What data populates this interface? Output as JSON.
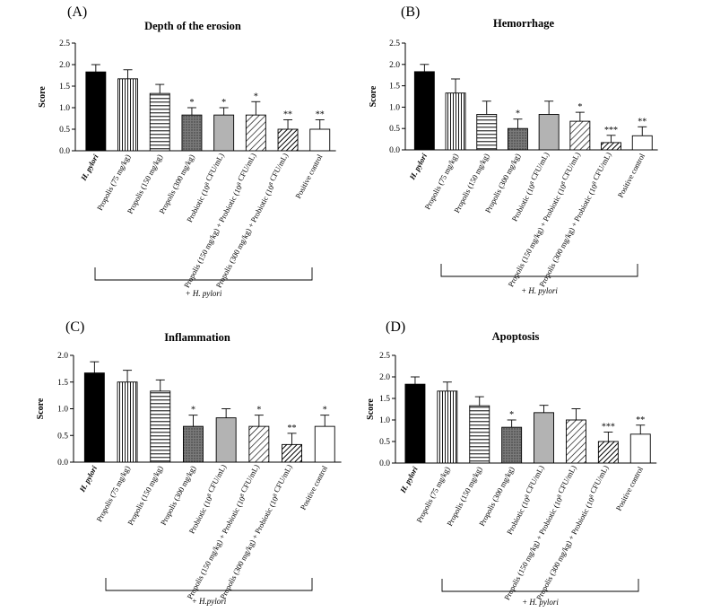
{
  "figure": {
    "panels": [
      {
        "id": "A",
        "label": "(A)",
        "title": "Depth of the erosion"
      },
      {
        "id": "B",
        "label": "(B)",
        "title": "Hemorrhage"
      },
      {
        "id": "C",
        "label": "(C)",
        "title": "Inflammation"
      },
      {
        "id": "D",
        "label": "(D)",
        "title": "Apoptosis"
      }
    ]
  },
  "chart_data": [
    {
      "type": "bar",
      "panel": "(A)",
      "title": "Depth of the erosion",
      "ylabel": "Score",
      "xlabel": "",
      "ylim": [
        0,
        2.5
      ],
      "yticks": [
        "0.0",
        "0.5",
        "1.0",
        "1.5",
        "2.0",
        "2.5"
      ],
      "categories": [
        "H. pylori",
        "Propolis (75 mg/kg)",
        "Propolis (150 mg/kg)",
        "Propolis (300 mg/kg)",
        "Probiotic (10⁸ CFU/mL)",
        "Propolis (150 mg/kg) + Probiotic (10⁸ CFU/mL)",
        "Propolis (300 mg/kg) + Probiotic (10⁸ CFU/mL)",
        "Positive control"
      ],
      "values": [
        1.83,
        1.67,
        1.33,
        0.83,
        0.83,
        0.83,
        0.5,
        0.5
      ],
      "errors": [
        0.17,
        0.21,
        0.21,
        0.17,
        0.17,
        0.31,
        0.22,
        0.22
      ],
      "significance": [
        "",
        "",
        "",
        "*",
        "*",
        "*",
        "**",
        "**"
      ],
      "bracket_label": "+ H. pylori",
      "grid": false
    },
    {
      "type": "bar",
      "panel": "(B)",
      "title": "Hemorrhage",
      "ylabel": "Score",
      "xlabel": "",
      "ylim": [
        0,
        2.5
      ],
      "yticks": [
        "0.0",
        "0.5",
        "1.0",
        "1.5",
        "2.0",
        "2.5"
      ],
      "categories": [
        "H. pylori",
        "Propolis (75 mg/kg)",
        "Propolis (150 mg/kg)",
        "Propolis (300 mg/kg)",
        "Probiotic (10⁸ CFU/mL)",
        "Propolis (150 mg/kg) + Probiotic (10⁸ CFU/mL)",
        "Propolis (300 mg/kg) + Probiotic (10⁸ CFU/mL)",
        "Positive control"
      ],
      "values": [
        1.83,
        1.33,
        0.83,
        0.5,
        0.83,
        0.67,
        0.17,
        0.33
      ],
      "errors": [
        0.17,
        0.33,
        0.31,
        0.22,
        0.31,
        0.21,
        0.17,
        0.21
      ],
      "significance": [
        "",
        "",
        "",
        "*",
        "",
        "*",
        "***",
        "**"
      ],
      "bracket_label": "+ H. pylori",
      "grid": false
    },
    {
      "type": "bar",
      "panel": "(C)",
      "title": "Inflammation",
      "ylabel": "Score",
      "xlabel": "",
      "ylim": [
        0,
        2.0
      ],
      "yticks": [
        "0.0",
        "0.5",
        "1.0",
        "1.5",
        "2.0"
      ],
      "categories": [
        "H. pylori",
        "Propolis (75 mg/kg)",
        "Propolis (150 mg/kg)",
        "Propolis (300 mg/kg)",
        "Probiotic (10⁸ CFU/mL)",
        "Propolis (150 mg/kg) + Probiotic (10⁸ CFU/mL)",
        "Propolis (300 mg/kg) + Probiotic (10⁸ CFU/mL)",
        "Positive control"
      ],
      "values": [
        1.67,
        1.5,
        1.33,
        0.67,
        0.83,
        0.67,
        0.33,
        0.67
      ],
      "errors": [
        0.21,
        0.22,
        0.21,
        0.21,
        0.17,
        0.21,
        0.21,
        0.21
      ],
      "significance": [
        "",
        "",
        "",
        "*",
        "",
        "*",
        "**",
        "*"
      ],
      "bracket_label": "+ H.pylori",
      "grid": false
    },
    {
      "type": "bar",
      "panel": "(D)",
      "title": "Apoptosis",
      "ylabel": "Score",
      "xlabel": "",
      "ylim": [
        0,
        2.5
      ],
      "yticks": [
        "0.0",
        "0.5",
        "1.0",
        "1.5",
        "2.0",
        "2.5"
      ],
      "categories": [
        "H. pylori",
        "Propolis (75 mg/kg)",
        "Propolis (150 mg/kg)",
        "Propolis (300 mg/kg)",
        "Probiotic (10⁸ CFU/mL)",
        "Propolis (150 mg/kg) + Probiotic (10⁸ CFU/mL)",
        "Propolis (300 mg/kg) + Probiotic (10⁸ CFU/mL)",
        "Positive control"
      ],
      "values": [
        1.83,
        1.67,
        1.33,
        0.83,
        1.17,
        1.0,
        0.5,
        0.67
      ],
      "errors": [
        0.17,
        0.21,
        0.21,
        0.17,
        0.17,
        0.26,
        0.22,
        0.21
      ],
      "significance": [
        "",
        "",
        "",
        "*",
        "",
        "",
        "***",
        "**"
      ],
      "bracket_label": "+ H. pylori",
      "grid": false
    }
  ]
}
